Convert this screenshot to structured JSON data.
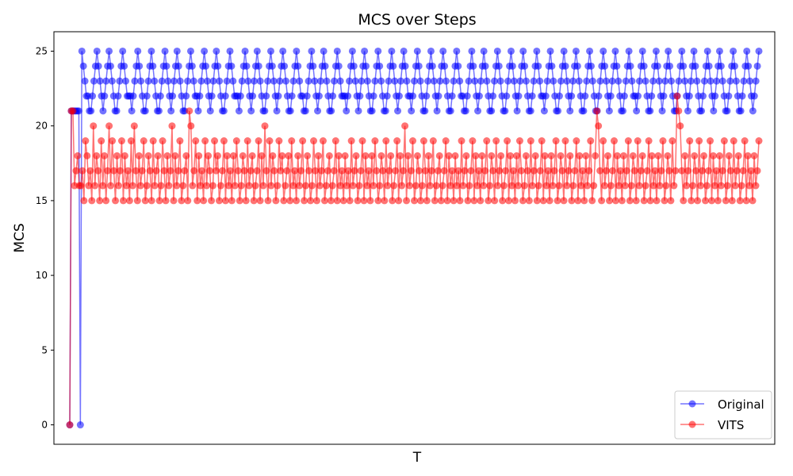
{
  "chart_data": {
    "type": "line",
    "title": "MCS over Steps",
    "xlabel": "T",
    "ylabel": "MCS",
    "ylim": [
      -1.3,
      26.3
    ],
    "x_range": [
      0,
      446
    ],
    "y_ticks": [
      0,
      5,
      10,
      15,
      20,
      25
    ],
    "legend_position": "lower-right",
    "marker": "o",
    "series": [
      {
        "name": "Original",
        "color": "#0000ff",
        "alpha": 0.55,
        "start": [
          0,
          21,
          21,
          21,
          21,
          21,
          21
        ],
        "segments": [
          [
            0,
            25,
            24,
            23,
            22,
            22,
            21,
            21,
            22,
            23,
            24,
            25,
            24,
            23,
            22,
            21,
            22,
            23,
            24,
            25,
            24,
            23,
            22,
            21,
            21,
            22,
            23,
            24,
            25,
            24,
            23,
            22,
            22,
            22,
            21,
            22,
            23,
            24,
            25,
            24,
            23,
            22,
            21,
            21,
            22,
            23,
            24,
            25,
            24,
            23,
            22,
            21,
            21,
            22,
            23,
            24,
            25,
            24,
            23,
            22,
            21,
            22,
            23,
            24,
            25,
            24,
            23,
            22,
            21,
            21,
            22,
            23,
            24,
            25,
            24,
            23,
            22,
            22,
            21,
            22,
            23,
            24,
            25,
            24,
            23,
            22,
            21,
            22,
            23,
            24,
            25,
            24,
            23,
            22,
            21,
            21,
            22,
            23,
            24,
            25,
            24,
            23,
            22,
            22,
            22,
            21,
            22,
            23,
            24,
            25,
            24,
            23,
            22,
            21,
            22,
            23,
            24,
            25,
            24,
            23,
            22,
            21,
            21,
            22,
            23,
            24,
            25,
            24,
            23,
            22,
            21,
            22,
            23,
            24,
            25,
            24,
            23,
            22,
            21,
            21,
            22,
            23,
            24,
            25,
            24,
            23,
            22,
            22,
            21,
            21,
            22,
            23,
            24,
            25,
            24,
            23,
            22,
            21,
            22,
            23,
            24,
            25,
            24,
            23,
            22,
            21,
            21,
            22,
            23,
            24,
            25,
            24,
            23,
            22,
            22,
            22,
            21,
            22,
            23,
            24,
            25,
            24,
            23,
            22,
            21,
            22,
            23,
            24,
            25,
            24,
            23,
            22,
            21,
            21,
            22,
            23,
            24,
            25,
            24,
            23,
            22,
            21,
            21,
            22,
            23,
            24,
            25,
            24,
            23,
            22,
            21,
            22,
            23,
            24,
            25,
            24,
            23,
            22,
            22,
            21,
            22,
            23,
            24,
            25,
            24,
            23,
            22,
            21,
            21,
            22,
            23,
            24,
            25,
            24,
            23,
            22,
            21,
            22,
            23,
            24,
            25,
            24,
            23,
            22,
            21,
            21,
            22,
            23,
            24,
            25,
            24,
            23,
            22,
            22,
            21,
            21,
            22,
            23,
            24,
            25,
            24,
            23,
            22,
            21,
            22,
            23,
            24,
            25,
            24,
            23,
            22,
            21,
            21,
            22,
            23,
            24,
            25,
            24,
            23,
            22,
            21,
            21,
            22,
            23,
            24,
            25,
            24,
            23,
            22,
            21,
            22,
            23,
            24,
            25,
            24,
            23,
            22,
            21,
            21,
            22,
            23,
            24,
            25,
            24,
            23,
            22,
            22,
            21,
            22,
            23,
            24,
            25,
            24,
            23,
            22,
            21,
            21,
            22,
            23,
            24,
            25,
            24,
            23,
            22,
            21,
            22,
            23,
            24,
            25,
            24,
            23,
            22,
            21,
            21,
            22,
            23,
            24,
            25,
            24,
            23,
            22,
            21,
            21,
            22,
            23,
            24,
            25,
            24,
            23,
            22,
            21,
            22,
            23,
            24,
            25,
            24,
            23,
            22,
            21,
            21,
            22,
            23,
            24,
            25,
            24,
            23,
            22,
            22,
            21,
            22,
            23,
            24,
            25,
            24,
            23,
            22,
            21,
            21,
            22,
            23,
            24,
            25,
            24,
            23,
            22,
            21,
            22,
            23,
            24,
            25,
            24,
            23,
            22,
            21,
            21,
            22,
            23,
            24,
            25,
            24,
            23,
            22,
            21,
            22,
            23,
            24,
            25,
            24,
            23,
            22,
            21,
            21,
            22,
            23,
            24,
            25,
            24,
            23,
            22,
            21,
            22,
            23,
            24,
            25,
            24,
            23,
            22,
            21,
            21,
            22,
            23,
            24,
            25,
            24,
            23,
            22,
            21,
            21,
            22,
            23,
            24,
            25,
            24,
            23,
            22,
            21,
            22,
            23,
            24,
            25
          ]
        ]
      },
      {
        "name": "VITS",
        "color": "#ff0000",
        "alpha": 0.55,
        "start": [
          0,
          21,
          21,
          16,
          17,
          18,
          16
        ],
        "segments": [
          [
            16,
            17,
            15,
            19,
            18,
            16,
            17,
            15,
            20,
            16,
            18,
            17,
            15,
            19,
            16,
            18,
            15,
            17,
            20,
            16,
            19,
            17,
            15,
            18,
            16,
            17,
            19,
            15,
            18,
            16,
            17,
            15,
            19,
            16,
            20,
            17,
            15,
            18,
            16,
            17,
            19,
            15,
            16,
            18,
            17,
            15,
            19,
            16,
            17,
            18,
            15,
            16,
            19,
            17,
            15,
            18,
            16,
            17,
            20,
            15,
            18,
            16,
            17,
            19,
            15,
            16,
            17,
            18,
            15,
            21,
            20,
            16,
            17,
            19,
            15,
            18,
            16,
            17,
            15,
            19,
            16,
            18,
            17,
            15,
            16,
            19,
            17,
            18,
            15,
            16,
            17,
            19,
            15,
            18,
            16,
            17,
            15,
            18,
            16,
            19,
            17,
            15,
            16,
            18,
            17,
            15,
            19,
            16,
            17,
            18,
            15,
            16,
            17,
            19,
            15,
            18,
            16,
            20,
            17,
            15,
            19,
            16,
            18,
            17,
            15,
            16,
            19,
            17,
            18,
            15,
            16,
            17,
            18,
            15,
            19,
            16,
            17,
            15,
            18,
            16,
            17,
            19,
            15,
            16,
            18,
            17,
            15,
            16,
            19,
            17,
            15,
            18,
            16,
            17,
            19,
            15,
            16,
            17,
            18,
            15,
            16,
            17,
            19,
            15,
            18,
            16,
            17,
            15,
            18,
            16,
            17,
            15,
            19,
            16,
            17,
            18,
            15,
            16,
            17,
            19,
            15,
            18,
            16,
            17,
            15,
            18,
            16,
            19,
            17,
            15,
            16,
            18,
            17,
            15,
            19,
            16,
            17,
            18,
            15,
            16,
            17,
            19,
            15,
            18,
            16,
            17,
            20,
            15,
            18,
            16,
            17,
            19,
            15,
            16,
            18,
            17,
            15,
            16,
            19,
            17,
            15,
            18,
            16,
            17,
            19,
            15,
            16,
            17,
            18,
            15,
            16,
            17,
            19,
            15,
            18,
            16,
            17,
            15,
            18,
            16,
            17,
            15,
            19,
            16,
            17,
            18,
            15,
            16,
            17,
            19,
            15,
            18,
            16,
            17,
            15,
            18,
            16,
            17,
            19,
            15,
            16,
            18,
            17,
            15,
            19,
            16,
            17,
            18,
            15,
            16,
            17,
            19,
            15,
            18,
            16,
            17,
            15,
            18,
            16,
            19,
            17,
            15,
            16,
            18,
            17,
            15,
            19,
            16,
            17,
            18,
            15,
            16,
            17,
            19,
            15,
            18,
            16,
            17,
            15,
            18,
            16,
            17,
            19,
            15,
            16,
            18,
            17,
            15,
            19,
            16,
            17,
            18,
            15,
            16,
            17,
            19,
            15,
            18,
            16,
            17,
            15,
            18,
            16,
            17,
            19,
            15,
            16,
            18,
            21,
            20,
            17,
            15,
            19,
            16,
            17,
            18,
            15,
            16,
            17,
            19,
            15,
            18,
            16,
            17,
            15,
            18,
            16,
            17,
            19,
            15,
            16,
            18,
            17,
            15,
            19,
            16,
            17,
            18,
            15,
            16,
            17,
            19,
            15,
            18,
            16,
            17,
            15,
            18,
            16,
            17,
            19,
            15,
            16,
            18,
            17,
            15,
            19,
            16,
            17,
            22,
            21,
            20,
            17,
            15,
            18,
            16,
            17,
            19,
            15,
            16,
            18,
            17,
            15,
            19,
            16,
            17,
            18,
            15,
            16,
            17,
            19,
            15,
            18,
            16,
            17,
            15,
            18,
            16,
            17,
            19,
            15,
            16,
            18,
            17,
            15,
            19,
            16,
            17,
            18,
            15,
            16,
            17,
            19,
            15,
            18,
            16,
            17,
            15,
            18,
            16,
            17,
            19
          ]
        ]
      }
    ],
    "y_tick_labels": [
      "0",
      "5",
      "10",
      "15",
      "20",
      "25"
    ]
  }
}
